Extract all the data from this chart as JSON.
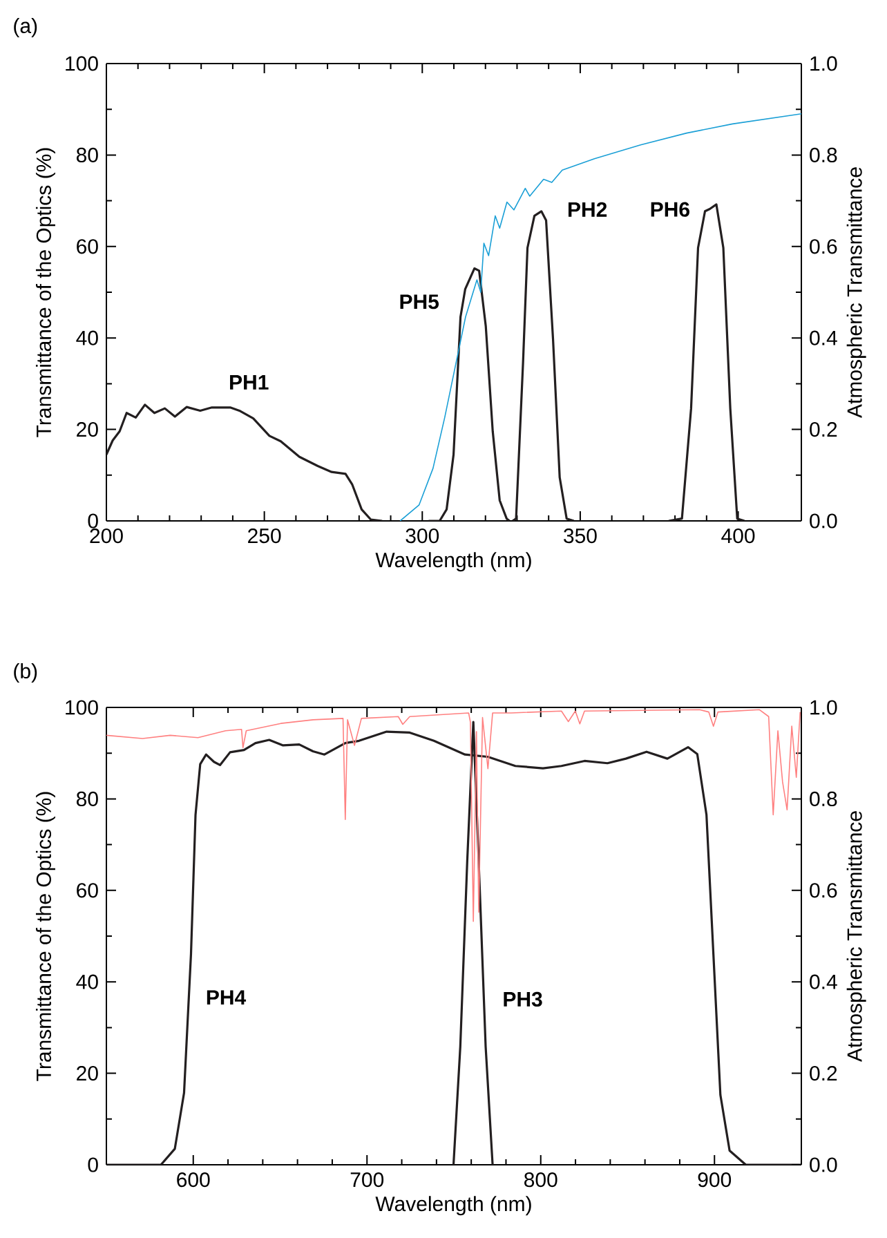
{
  "chart_data": [
    {
      "type": "line",
      "title": "(a)",
      "xlabel": "Wavelength (nm)",
      "ylabel": "Transmittance of the Optics (%)",
      "y2label": "Atmospheric Transmittance",
      "xlim": [
        200,
        420
      ],
      "xticks": [
        200,
        250,
        300,
        350,
        400
      ],
      "ylim": [
        0,
        100
      ],
      "yticks": [
        0,
        20,
        40,
        60,
        80,
        100
      ],
      "y2lim": [
        0,
        1
      ],
      "y2ticks": [
        {
          "value": 0,
          "label": "0.0"
        },
        {
          "value": 0.2,
          "label": "0.2"
        },
        {
          "value": 0.4,
          "label": "0.4"
        },
        {
          "value": 0.6,
          "label": "0.6"
        },
        {
          "value": 0.8,
          "label": "0.8"
        },
        {
          "value": 1,
          "label": "1.0"
        }
      ],
      "series": [
        {
          "color": "#1a9fd6",
          "axis": "y2",
          "x": [
            293,
            299,
            303.4,
            307.1,
            310.7,
            313.7,
            317.3,
            318.5,
            319.5,
            321,
            323.1,
            324.5,
            326.8,
            329,
            332.6,
            334,
            338.4,
            341,
            344.3,
            354.5,
            369.1,
            383.7,
            398.2,
            420
          ],
          "values": [
            0,
            0.035,
            0.115,
            0.226,
            0.346,
            0.446,
            0.527,
            0.5,
            0.607,
            0.58,
            0.667,
            0.64,
            0.697,
            0.68,
            0.727,
            0.71,
            0.747,
            0.74,
            0.767,
            0.792,
            0.822,
            0.848,
            0.868,
            0.89
          ]
        },
        {
          "name": "PH1",
          "color": "#231f20",
          "x": [
            200,
            202,
            204.2,
            206.4,
            209.3,
            212.2,
            215.2,
            218.5,
            221.7,
            225.4,
            229.7,
            233.4,
            239.2,
            242.1,
            246.5,
            251.6,
            255.2,
            261.1,
            266.9,
            271.3,
            275.7,
            277.8,
            280.8,
            283.7,
            287.3
          ],
          "values": [
            14.5,
            17.6,
            19.6,
            23.6,
            22.6,
            25.4,
            23.6,
            24.6,
            22.8,
            24.9,
            24.1,
            24.8,
            24.8,
            24.1,
            22.4,
            18.6,
            17.4,
            14,
            12,
            10.7,
            10.3,
            8,
            2.5,
            0.3,
            0
          ]
        },
        {
          "name": "PH5",
          "color": "#231f20",
          "x": [
            302,
            305.5,
            307.7,
            309.9,
            312.1,
            313.6,
            316.5,
            318,
            320.1,
            322.3,
            324.5,
            326.7,
            327.6
          ],
          "values": [
            0,
            0,
            2.5,
            14.5,
            44.6,
            50.7,
            55.2,
            54.7,
            42.6,
            19.6,
            4.5,
            0.5,
            0
          ]
        },
        {
          "name": "PH2",
          "color": "#231f20",
          "x": [
            328.6,
            329.7,
            331.9,
            333.3,
            335.5,
            337.7,
            339.2,
            341.4,
            343.5,
            345.7,
            348
          ],
          "values": [
            0,
            0.5,
            34.6,
            59.7,
            66.7,
            67.7,
            65.7,
            39.6,
            9.5,
            0.5,
            0
          ]
        },
        {
          "name": "PH6",
          "color": "#231f20",
          "x": [
            378,
            382.2,
            385.1,
            387.3,
            389.5,
            391,
            393.1,
            395.3,
            397.5,
            399.7,
            402
          ],
          "values": [
            0,
            0.5,
            24.6,
            59.7,
            67.7,
            68.2,
            69.2,
            59.7,
            24.6,
            0.5,
            0
          ]
        }
      ]
    },
    {
      "type": "line",
      "title": "(b)",
      "xlabel": "Wavelength (nm)",
      "ylabel": "Transmittance of the Optics (%)",
      "y2label": "Atmospheric Transmittance",
      "xlim": [
        550,
        950
      ],
      "xticks": [
        600,
        700,
        800,
        900
      ],
      "ylim": [
        0,
        100
      ],
      "yticks": [
        0,
        20,
        40,
        60,
        80,
        100
      ],
      "y2lim": [
        0,
        1
      ],
      "y2ticks": [
        {
          "value": 0,
          "label": "0.0"
        },
        {
          "value": 0.2,
          "label": "0.2"
        },
        {
          "value": 0.4,
          "label": "0.4"
        },
        {
          "value": 0.6,
          "label": "0.6"
        },
        {
          "value": 0.8,
          "label": "0.8"
        },
        {
          "value": 1,
          "label": "1.0"
        }
      ],
      "series": [
        {
          "color": "#ff8080",
          "axis": "y2",
          "x": [
            550,
            570.8,
            586.7,
            602.7,
            618.6,
            627.8,
            628.6,
            630.5,
            650.4,
            669,
            686.2,
            687.5,
            688.8,
            692.8,
            696.8,
            718,
            720.6,
            724.6,
            758.5,
            759.5,
            761.2,
            763,
            764.3,
            766.5,
            769.6,
            772.3,
            783,
            811.9,
            815.9,
            819.9,
            822.5,
            825.2,
            891.4,
            896.7,
            899.4,
            902,
            925.9,
            931.2,
            933.8,
            936.5,
            939.2,
            941.8,
            944.5,
            947.1,
            949.3
          ],
          "values": [
            0.939,
            0.932,
            0.939,
            0.934,
            0.949,
            0.952,
            0.912,
            0.949,
            0.965,
            0.973,
            0.976,
            0.755,
            0.973,
            0.917,
            0.976,
            0.98,
            0.963,
            0.98,
            0.988,
            0.968,
            0.532,
            0.947,
            0.552,
            0.978,
            0.866,
            0.988,
            0.988,
            0.992,
            0.969,
            0.992,
            0.964,
            0.992,
            0.995,
            0.99,
            0.959,
            0.99,
            0.995,
            0.98,
            0.765,
            0.949,
            0.837,
            0.776,
            0.959,
            0.847,
            0.99
          ]
        },
        {
          "name": "PH4",
          "color": "#231f20",
          "x": [
            550,
            581.4,
            589.4,
            594.7,
            598.7,
            601.3,
            604,
            607.4,
            611.9,
            615.4,
            621.2,
            629.2,
            635.8,
            643.7,
            651.7,
            661,
            668.9,
            675.5,
            687.5,
            695.4,
            711.3,
            724.6,
            738.5,
            756.4,
            769.6,
            785.4,
            801.3,
            811.9,
            825.2,
            838.4,
            849,
            860.9,
            872.9,
            884.8,
            890.1,
            895.4,
            899.4,
            903.4,
            908.7,
            918,
            950
          ],
          "values": [
            0,
            0,
            3.5,
            15.7,
            46.1,
            76.5,
            87.6,
            89.7,
            88.1,
            87.4,
            90.2,
            90.7,
            92.2,
            92.9,
            91.7,
            91.9,
            90.4,
            89.7,
            92.2,
            92.7,
            94.7,
            94.5,
            92.7,
            89.7,
            89.2,
            87.2,
            86.7,
            87.2,
            88.3,
            87.8,
            88.8,
            90.3,
            88.8,
            91.3,
            89.8,
            76.5,
            45.9,
            15.3,
            3.1,
            0,
            0
          ]
        },
        {
          "name": "PH3",
          "color": "#231f20",
          "x": [
            749.8,
            753.7,
            757.7,
            761.2,
            764.3,
            768.3,
            772.3
          ],
          "values": [
            0,
            25.8,
            66.4,
            96.8,
            66.4,
            25.8,
            0
          ]
        }
      ]
    }
  ]
}
